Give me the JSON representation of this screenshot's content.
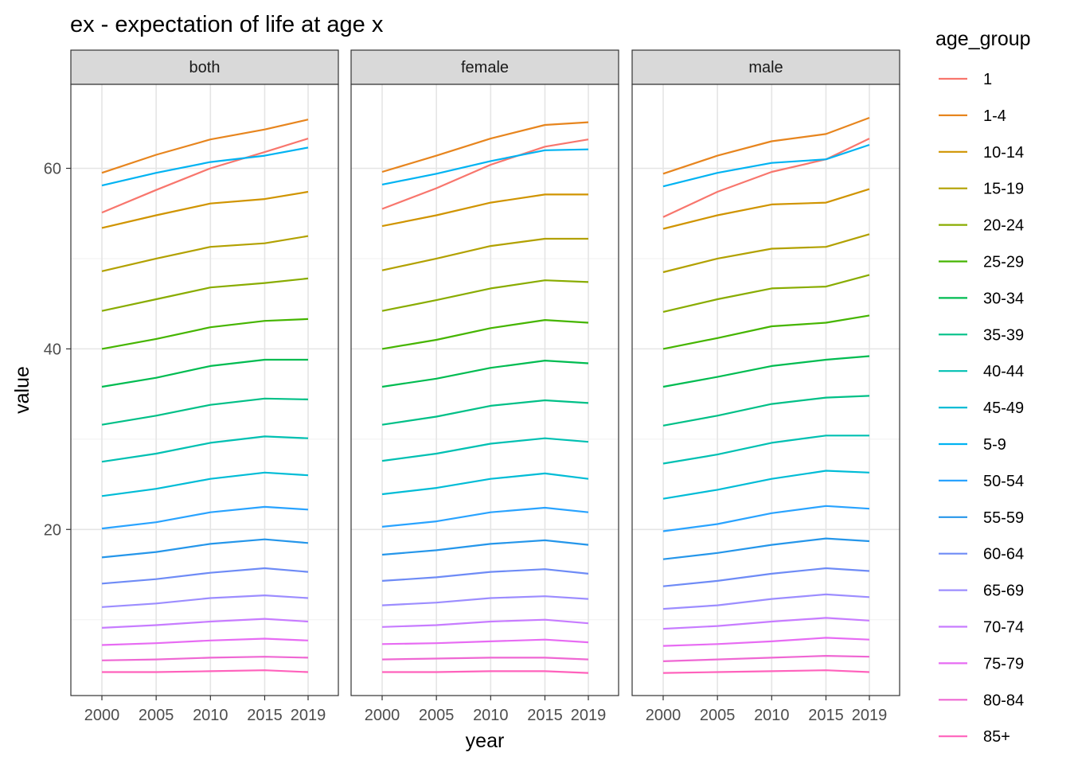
{
  "chart_data": {
    "type": "line",
    "title": "ex - expectation of life at age x",
    "xlabel": "year",
    "ylabel": "value",
    "x": [
      2000,
      2005,
      2010,
      2015,
      2019
    ],
    "x_tick_labels": [
      "2000",
      "2005",
      "2010",
      "2015",
      "2019"
    ],
    "y_ticks": [
      20,
      40,
      60
    ],
    "y_tick_labels": [
      "20",
      "40",
      "60"
    ],
    "ylim": [
      1.6,
      69.3
    ],
    "grid": true,
    "legend_title": "age_group",
    "legend_position": "right",
    "facets": [
      {
        "label": "both",
        "series": [
          {
            "name": "1",
            "color": "#F8766D",
            "values": [
              55.1,
              57.6,
              60.0,
              61.8,
              63.3
            ]
          },
          {
            "name": "1-4",
            "color": "#E7851E",
            "values": [
              59.5,
              61.5,
              63.2,
              64.3,
              65.4
            ]
          },
          {
            "name": "10-14",
            "color": "#D09400",
            "values": [
              53.4,
              54.8,
              56.1,
              56.6,
              57.4
            ]
          },
          {
            "name": "15-19",
            "color": "#B2A100",
            "values": [
              48.6,
              50.0,
              51.3,
              51.7,
              52.5
            ]
          },
          {
            "name": "20-24",
            "color": "#89AC00",
            "values": [
              44.2,
              45.5,
              46.8,
              47.3,
              47.8
            ]
          },
          {
            "name": "25-29",
            "color": "#45B500",
            "values": [
              40.0,
              41.1,
              42.4,
              43.1,
              43.3
            ]
          },
          {
            "name": "30-34",
            "color": "#00BC51",
            "values": [
              35.8,
              36.8,
              38.1,
              38.8,
              38.8
            ]
          },
          {
            "name": "35-39",
            "color": "#00C087",
            "values": [
              31.6,
              32.6,
              33.8,
              34.5,
              34.4
            ]
          },
          {
            "name": "40-44",
            "color": "#00C0B2",
            "values": [
              27.5,
              28.4,
              29.6,
              30.3,
              30.1
            ]
          },
          {
            "name": "45-49",
            "color": "#00BCD6",
            "values": [
              23.7,
              24.5,
              25.6,
              26.3,
              26.0
            ]
          },
          {
            "name": "5-9",
            "color": "#00B3F2",
            "values": [
              58.1,
              59.5,
              60.7,
              61.4,
              62.3
            ]
          },
          {
            "name": "50-54",
            "color": "#29A3FF",
            "values": [
              20.1,
              20.8,
              21.9,
              22.5,
              22.2
            ]
          },
          {
            "name": "55-59",
            "color": "#2596EA",
            "values": [
              16.9,
              17.5,
              18.4,
              18.9,
              18.5
            ]
          },
          {
            "name": "60-64",
            "color": "#6E8BF6",
            "values": [
              14.0,
              14.5,
              15.2,
              15.7,
              15.3
            ]
          },
          {
            "name": "65-69",
            "color": "#9C8DFF",
            "values": [
              11.4,
              11.8,
              12.4,
              12.7,
              12.4
            ]
          },
          {
            "name": "70-74",
            "color": "#C77CFF",
            "values": [
              9.1,
              9.4,
              9.8,
              10.1,
              9.8
            ]
          },
          {
            "name": "75-79",
            "color": "#E76BF3",
            "values": [
              7.2,
              7.4,
              7.7,
              7.9,
              7.7
            ]
          },
          {
            "name": "80-84",
            "color": "#EF67D3",
            "values": [
              5.5,
              5.6,
              5.8,
              5.9,
              5.8
            ]
          },
          {
            "name": "85+",
            "color": "#FF62BC",
            "values": [
              4.2,
              4.2,
              4.3,
              4.4,
              4.2
            ]
          }
        ]
      },
      {
        "label": "female",
        "series": [
          {
            "name": "1",
            "color": "#F8766D",
            "values": [
              55.5,
              57.8,
              60.4,
              62.4,
              63.2
            ]
          },
          {
            "name": "1-4",
            "color": "#E7851E",
            "values": [
              59.6,
              61.4,
              63.3,
              64.8,
              65.1
            ]
          },
          {
            "name": "10-14",
            "color": "#D09400",
            "values": [
              53.6,
              54.8,
              56.2,
              57.1,
              57.1
            ]
          },
          {
            "name": "15-19",
            "color": "#B2A100",
            "values": [
              48.7,
              50.0,
              51.4,
              52.2,
              52.2
            ]
          },
          {
            "name": "20-24",
            "color": "#89AC00",
            "values": [
              44.2,
              45.4,
              46.7,
              47.6,
              47.4
            ]
          },
          {
            "name": "25-29",
            "color": "#45B500",
            "values": [
              40.0,
              41.0,
              42.3,
              43.2,
              42.9
            ]
          },
          {
            "name": "30-34",
            "color": "#00BC51",
            "values": [
              35.8,
              36.7,
              37.9,
              38.7,
              38.4
            ]
          },
          {
            "name": "35-39",
            "color": "#00C087",
            "values": [
              31.6,
              32.5,
              33.7,
              34.3,
              34.0
            ]
          },
          {
            "name": "40-44",
            "color": "#00C0B2",
            "values": [
              27.6,
              28.4,
              29.5,
              30.1,
              29.7
            ]
          },
          {
            "name": "45-49",
            "color": "#00BCD6",
            "values": [
              23.9,
              24.6,
              25.6,
              26.2,
              25.6
            ]
          },
          {
            "name": "5-9",
            "color": "#00B3F2",
            "values": [
              58.2,
              59.4,
              60.8,
              62.0,
              62.1
            ]
          },
          {
            "name": "50-54",
            "color": "#29A3FF",
            "values": [
              20.3,
              20.9,
              21.9,
              22.4,
              21.9
            ]
          },
          {
            "name": "55-59",
            "color": "#2596EA",
            "values": [
              17.2,
              17.7,
              18.4,
              18.8,
              18.3
            ]
          },
          {
            "name": "60-64",
            "color": "#6E8BF6",
            "values": [
              14.3,
              14.7,
              15.3,
              15.6,
              15.1
            ]
          },
          {
            "name": "65-69",
            "color": "#9C8DFF",
            "values": [
              11.6,
              11.9,
              12.4,
              12.6,
              12.3
            ]
          },
          {
            "name": "70-74",
            "color": "#C77CFF",
            "values": [
              9.2,
              9.4,
              9.8,
              10.0,
              9.6
            ]
          },
          {
            "name": "75-79",
            "color": "#E76BF3",
            "values": [
              7.3,
              7.4,
              7.6,
              7.8,
              7.5
            ]
          },
          {
            "name": "80-84",
            "color": "#EF67D3",
            "values": [
              5.6,
              5.7,
              5.8,
              5.8,
              5.6
            ]
          },
          {
            "name": "85+",
            "color": "#FF62BC",
            "values": [
              4.2,
              4.2,
              4.3,
              4.3,
              4.1
            ]
          }
        ]
      },
      {
        "label": "male",
        "series": [
          {
            "name": "1",
            "color": "#F8766D",
            "values": [
              54.6,
              57.4,
              59.6,
              61.0,
              63.3
            ]
          },
          {
            "name": "1-4",
            "color": "#E7851E",
            "values": [
              59.4,
              61.4,
              63.0,
              63.8,
              65.6
            ]
          },
          {
            "name": "10-14",
            "color": "#D09400",
            "values": [
              53.3,
              54.8,
              56.0,
              56.2,
              57.7
            ]
          },
          {
            "name": "15-19",
            "color": "#B2A100",
            "values": [
              48.5,
              50.0,
              51.1,
              51.3,
              52.7
            ]
          },
          {
            "name": "20-24",
            "color": "#89AC00",
            "values": [
              44.1,
              45.5,
              46.7,
              46.9,
              48.2
            ]
          },
          {
            "name": "25-29",
            "color": "#45B500",
            "values": [
              40.0,
              41.2,
              42.5,
              42.9,
              43.7
            ]
          },
          {
            "name": "30-34",
            "color": "#00BC51",
            "values": [
              35.8,
              36.9,
              38.1,
              38.8,
              39.2
            ]
          },
          {
            "name": "35-39",
            "color": "#00C087",
            "values": [
              31.5,
              32.6,
              33.9,
              34.6,
              34.8
            ]
          },
          {
            "name": "40-44",
            "color": "#00C0B2",
            "values": [
              27.3,
              28.3,
              29.6,
              30.4,
              30.4
            ]
          },
          {
            "name": "45-49",
            "color": "#00BCD6",
            "values": [
              23.4,
              24.4,
              25.6,
              26.5,
              26.3
            ]
          },
          {
            "name": "5-9",
            "color": "#00B3F2",
            "values": [
              58.0,
              59.5,
              60.6,
              61.0,
              62.6
            ]
          },
          {
            "name": "50-54",
            "color": "#29A3FF",
            "values": [
              19.8,
              20.6,
              21.8,
              22.6,
              22.3
            ]
          },
          {
            "name": "55-59",
            "color": "#2596EA",
            "values": [
              16.7,
              17.4,
              18.3,
              19.0,
              18.7
            ]
          },
          {
            "name": "60-64",
            "color": "#6E8BF6",
            "values": [
              13.7,
              14.3,
              15.1,
              15.7,
              15.4
            ]
          },
          {
            "name": "65-69",
            "color": "#9C8DFF",
            "values": [
              11.2,
              11.6,
              12.3,
              12.8,
              12.5
            ]
          },
          {
            "name": "70-74",
            "color": "#C77CFF",
            "values": [
              9.0,
              9.3,
              9.8,
              10.2,
              9.9
            ]
          },
          {
            "name": "75-79",
            "color": "#E76BF3",
            "values": [
              7.1,
              7.3,
              7.6,
              8.0,
              7.8
            ]
          },
          {
            "name": "80-84",
            "color": "#EF67D3",
            "values": [
              5.4,
              5.6,
              5.8,
              6.0,
              5.9
            ]
          },
          {
            "name": "85+",
            "color": "#FF62BC",
            "values": [
              4.1,
              4.2,
              4.3,
              4.4,
              4.2
            ]
          }
        ]
      }
    ]
  }
}
